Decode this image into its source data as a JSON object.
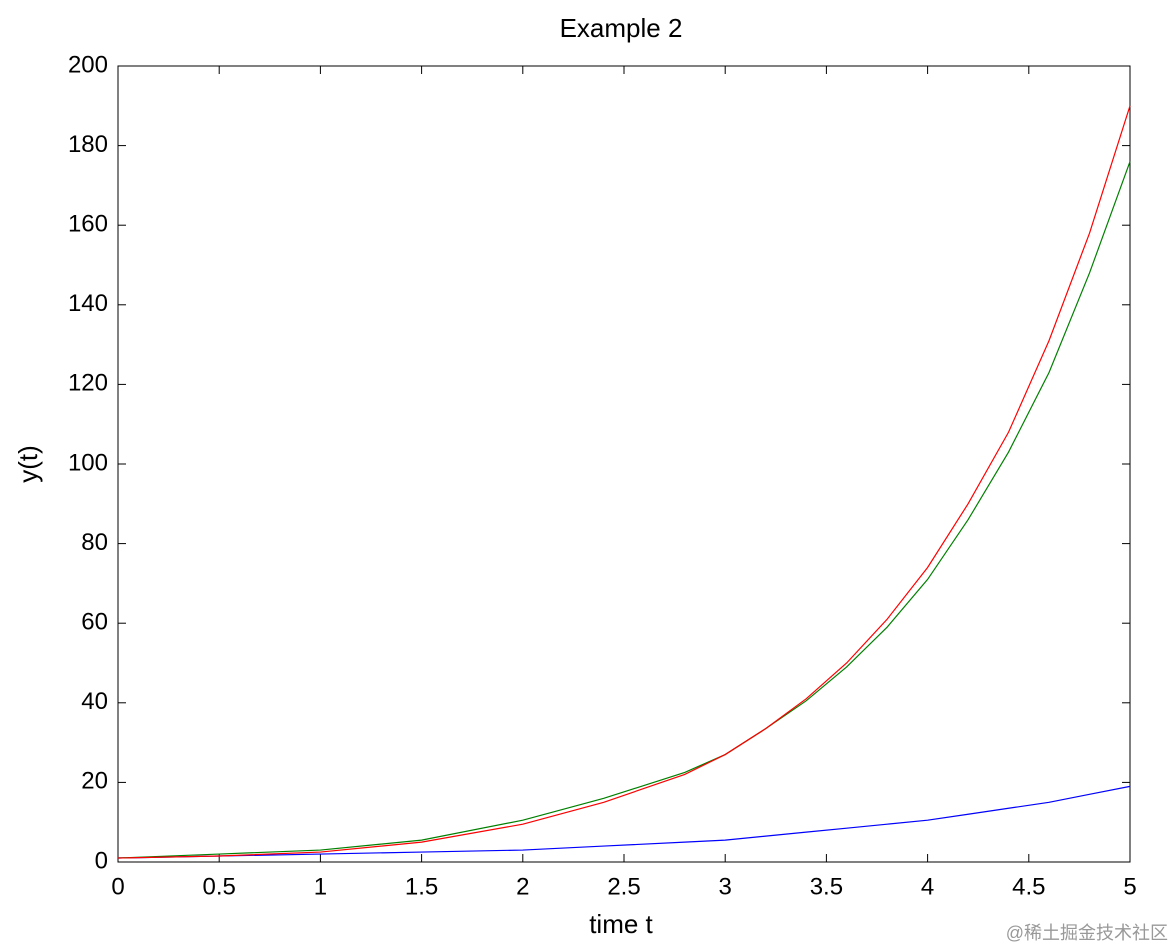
{
  "chart_data": {
    "type": "line",
    "title": "Example 2",
    "x_label": "time t",
    "y_label": "y(t)",
    "x": [
      0,
      0.5,
      1,
      1.5,
      2,
      2.4,
      2.8,
      3,
      3.2,
      3.4,
      3.6,
      3.8,
      4,
      4.2,
      4.4,
      4.6,
      4.8,
      5
    ],
    "series": [
      {
        "color": "#0000ff",
        "values": [
          1,
          1.5,
          2,
          2.5,
          3,
          4,
          5,
          5.5,
          6.5,
          7.5,
          8.5,
          9.5,
          10.5,
          12,
          13.5,
          15,
          17,
          19
        ]
      },
      {
        "color": "#008000",
        "values": [
          1,
          2,
          3,
          5.5,
          10.5,
          16,
          22.5,
          27,
          33.5,
          40.5,
          49,
          59,
          71,
          86,
          103,
          123,
          148,
          176
        ]
      },
      {
        "color": "#ff0000",
        "values": [
          1,
          1.5,
          2.5,
          5,
          9.5,
          15,
          22,
          27,
          33.5,
          41,
          50,
          61,
          74,
          90,
          108,
          131,
          158,
          190
        ]
      }
    ],
    "xlim": [
      0,
      5
    ],
    "xticks": [
      0,
      0.5,
      1,
      1.5,
      2,
      2.5,
      3,
      3.5,
      4,
      4.5,
      5
    ],
    "ylim": [
      0,
      200
    ],
    "yticks": [
      0,
      20,
      40,
      60,
      80,
      100,
      120,
      140,
      160,
      180,
      200
    ],
    "grid": false
  },
  "watermark": "@稀土掘金技术社区"
}
